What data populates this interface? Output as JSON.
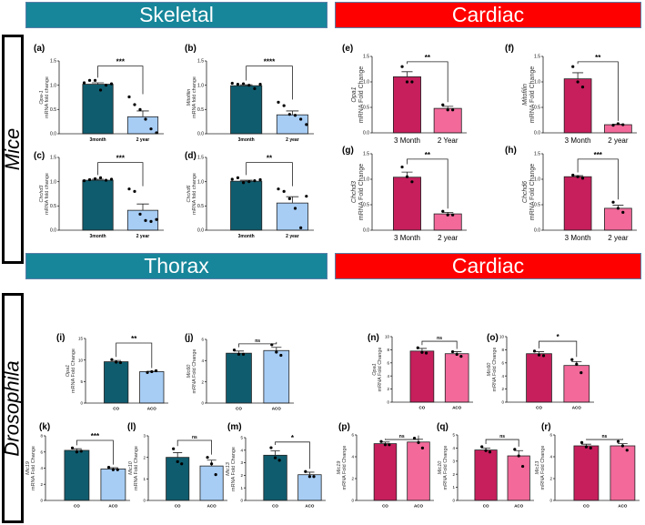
{
  "banners": {
    "skeletal": "Skeletal",
    "cardiac_top": "Cardiac",
    "thorax": "Thorax",
    "cardiac_bottom": "Cardiac"
  },
  "species": {
    "mice": "Mice",
    "drosophila": "Drosophila"
  },
  "colors": {
    "mice_skel_ctrl": "#0f5c6e",
    "mice_skel_aged": "#a7cdf5",
    "cardiac_ctrl": "#c61f5c",
    "cardiac_aged": "#f2699a",
    "thorax_ctrl": "#0f5c6e",
    "thorax_aged": "#a7cdf5"
  },
  "chart_data": [
    {
      "id": "a",
      "label": "(a)",
      "type": "bar",
      "gene": "Opa-1",
      "ylabel": "mRNA fold change",
      "categories": [
        "3month",
        "2 year"
      ],
      "yticks": [
        "0.0",
        "0.5",
        "1.0",
        "1.5"
      ],
      "ylim": [
        0,
        1.5
      ],
      "means": [
        1.02,
        0.35
      ],
      "sems": [
        0.03,
        0.12
      ],
      "points": [
        [
          1.05,
          1.1,
          1.1,
          0.9,
          1.0,
          1.03
        ],
        [
          0.76,
          0.6,
          0.5,
          0.3,
          0.1,
          0.02
        ]
      ],
      "sig": "***"
    },
    {
      "id": "b",
      "label": "(b)",
      "type": "bar",
      "gene": "Mitofilin",
      "ylabel": "mRNA fold change",
      "categories": [
        "3month",
        "2 year"
      ],
      "yticks": [
        "0.0",
        "0.5",
        "1.0",
        "1.5"
      ],
      "ylim": [
        0,
        1.5
      ],
      "means": [
        0.99,
        0.39
      ],
      "sems": [
        0.02,
        0.08
      ],
      "points": [
        [
          1.04,
          1.02,
          1.03,
          1.0,
          0.93,
          1.02
        ],
        [
          0.65,
          0.58,
          0.4,
          0.38,
          0.3,
          0.19
        ]
      ],
      "sig": "****"
    },
    {
      "id": "c",
      "label": "(c)",
      "type": "bar",
      "gene": "Chchd3",
      "ylabel": "mRNA fold change",
      "categories": [
        "3month",
        "2 year"
      ],
      "yticks": [
        "0.0",
        "0.5",
        "1.0",
        "1.5"
      ],
      "ylim": [
        0,
        1.5
      ],
      "means": [
        1.03,
        0.41
      ],
      "sems": [
        0.02,
        0.13
      ],
      "points": [
        [
          1.02,
          1.04,
          1.06,
          1.08,
          1.03,
          1.05
        ],
        [
          0.85,
          0.8,
          0.33,
          0.2,
          0.18,
          0.22
        ]
      ],
      "sig": "***"
    },
    {
      "id": "d",
      "label": "(d)",
      "type": "bar",
      "gene": "Chchd6",
      "ylabel": "mRNA fold change",
      "categories": [
        "3month",
        "2 year"
      ],
      "yticks": [
        "0.0",
        "0.5",
        "1.0",
        "1.5"
      ],
      "ylim": [
        0,
        1.5
      ],
      "means": [
        1.01,
        0.56
      ],
      "sems": [
        0.02,
        0.13
      ],
      "points": [
        [
          1.05,
          1.08,
          0.98,
          1.0,
          1.02,
          1.04
        ],
        [
          0.85,
          0.8,
          0.65,
          0.45,
          0.05,
          0.7
        ]
      ],
      "sig": "**"
    },
    {
      "id": "e",
      "label": "(e)",
      "type": "bar",
      "gene": "Opa1",
      "ylabel": "mRNA Fold Change",
      "categories": [
        "3 Month",
        "2 Year"
      ],
      "yticks": [
        "0.0",
        "0.5",
        "1.0",
        "1.5"
      ],
      "ylim": [
        0,
        1.5
      ],
      "means": [
        1.1,
        0.48
      ],
      "sems": [
        0.1,
        0.04
      ],
      "points": [
        [
          1.3,
          1.0,
          1.0
        ],
        [
          0.55,
          0.45,
          0.45
        ]
      ],
      "sig": "**"
    },
    {
      "id": "f",
      "label": "(f)",
      "type": "bar",
      "gene": "Mitofilin",
      "ylabel": "mRNA Fold Change",
      "categories": [
        "3 Month",
        "2 year"
      ],
      "yticks": [
        "0.0",
        "0.5",
        "1.0",
        "1.5"
      ],
      "ylim": [
        0,
        1.5
      ],
      "means": [
        1.06,
        0.16
      ],
      "sems": [
        0.12,
        0.01
      ],
      "points": [
        [
          1.3,
          1.0,
          0.9
        ],
        [
          0.15,
          0.18,
          0.16
        ]
      ],
      "sig": "**"
    },
    {
      "id": "g",
      "label": "(g)",
      "type": "bar",
      "gene": "Chchd3",
      "ylabel": "mRNA Fold Change",
      "categories": [
        "3 Month",
        "2 year"
      ],
      "yticks": [
        "0.0",
        "0.5",
        "1.0",
        "1.5"
      ],
      "ylim": [
        0,
        1.5
      ],
      "means": [
        1.04,
        0.32
      ],
      "sems": [
        0.1,
        0.03
      ],
      "points": [
        [
          1.24,
          1.05,
          0.95
        ],
        [
          0.37,
          0.3,
          0.3
        ]
      ],
      "sig": "**"
    },
    {
      "id": "h",
      "label": "(h)",
      "type": "bar",
      "gene": "Chchd6",
      "ylabel": "mRNA Fold Change",
      "categories": [
        "3 Month",
        "2 year"
      ],
      "yticks": [
        "0.0",
        "0.5",
        "1.0",
        "1.5"
      ],
      "ylim": [
        0,
        1.5
      ],
      "means": [
        1.05,
        0.43
      ],
      "sems": [
        0.02,
        0.06
      ],
      "points": [
        [
          1.08,
          1.05,
          1.02
        ],
        [
          0.55,
          0.43,
          0.35
        ]
      ],
      "sig": "***"
    },
    {
      "id": "i",
      "label": "(i)",
      "type": "bar",
      "gene": "Opa1",
      "ylabel": "mRNA Fold Change",
      "categories": [
        "CO",
        "ACO"
      ],
      "yticks": [
        "0",
        "5",
        "10",
        "15"
      ],
      "ylim": [
        0,
        15
      ],
      "means": [
        9.6,
        7.3
      ],
      "sems": [
        0.3,
        0.1
      ],
      "points": [
        [
          10.1,
          9.5,
          9.4
        ],
        [
          7.1,
          7.3,
          7.5
        ]
      ],
      "sig": "**"
    },
    {
      "id": "j",
      "label": "(j)",
      "type": "bar",
      "gene": "Mic60",
      "ylabel": "mRNA Fold Change",
      "categories": [
        "CO",
        "ACO"
      ],
      "yticks": [
        "0",
        "2",
        "4",
        "6"
      ],
      "ylim": [
        0,
        6
      ],
      "means": [
        4.7,
        4.95
      ],
      "sems": [
        0.2,
        0.3
      ],
      "points": [
        [
          5.0,
          4.6,
          4.6
        ],
        [
          5.5,
          4.8,
          4.5
        ]
      ],
      "sig": "ns"
    },
    {
      "id": "k",
      "label": "(k)",
      "type": "bar",
      "gene": "Mic19",
      "ylabel": "mRNA Fold Change",
      "categories": [
        "CO",
        "ACO"
      ],
      "yticks": [
        "0",
        "2",
        "4",
        "6",
        "8"
      ],
      "ylim": [
        0,
        8
      ],
      "means": [
        6.2,
        3.9
      ],
      "sems": [
        0.2,
        0.15
      ],
      "points": [
        [
          6.5,
          6.0,
          6.1
        ],
        [
          4.1,
          3.8,
          3.8
        ]
      ],
      "sig": "***"
    },
    {
      "id": "l",
      "label": "(l)",
      "type": "bar",
      "gene": "Mic10",
      "ylabel": "mRNA Fold Change",
      "categories": [
        "CO",
        "ACO"
      ],
      "yticks": [
        "0",
        "1",
        "2",
        "3"
      ],
      "ylim": [
        0,
        3
      ],
      "means": [
        2.0,
        1.6
      ],
      "sems": [
        0.22,
        0.27
      ],
      "points": [
        [
          2.4,
          1.8,
          1.7
        ],
        [
          2.0,
          1.7,
          1.2
        ]
      ],
      "sig": "ns"
    },
    {
      "id": "m",
      "label": "(m)",
      "type": "bar",
      "gene": "Mic13",
      "ylabel": "mRNA Fold Change",
      "categories": [
        "CO",
        "ACO"
      ],
      "yticks": [
        "0",
        "1",
        "2",
        "3",
        "4",
        "5"
      ],
      "ylim": [
        0,
        5
      ],
      "means": [
        3.6,
        2.05
      ],
      "sems": [
        0.35,
        0.2
      ],
      "points": [
        [
          4.2,
          3.4,
          3.2
        ],
        [
          2.3,
          1.9,
          1.9
        ]
      ],
      "sig": "*"
    },
    {
      "id": "n",
      "label": "(n)",
      "type": "bar",
      "gene": "Opa1",
      "ylabel": "mRNA Fold Change",
      "categories": [
        "CO",
        "ACO"
      ],
      "yticks": [
        "0",
        "2",
        "4",
        "6",
        "8",
        "10"
      ],
      "ylim": [
        0,
        10
      ],
      "means": [
        7.8,
        7.4
      ],
      "sems": [
        0.4,
        0.3
      ],
      "points": [
        [
          8.3,
          7.6,
          7.5
        ],
        [
          7.7,
          7.3,
          7.0
        ]
      ],
      "sig": "ns"
    },
    {
      "id": "o",
      "label": "(o)",
      "type": "bar",
      "gene": "Mic60",
      "ylabel": "mRNA Fold Change",
      "categories": [
        "CO",
        "ACO"
      ],
      "yticks": [
        "0",
        "2",
        "4",
        "6",
        "8",
        "10"
      ],
      "ylim": [
        0,
        10
      ],
      "means": [
        7.4,
        5.6
      ],
      "sems": [
        0.3,
        0.6
      ],
      "points": [
        [
          7.8,
          7.2,
          7.1
        ],
        [
          6.5,
          5.8,
          4.5
        ]
      ],
      "sig": "*"
    },
    {
      "id": "p",
      "label": "(p)",
      "type": "bar",
      "gene": "Mic19",
      "ylabel": "mRNA Fold Change",
      "categories": [
        "CO",
        "ACO"
      ],
      "yticks": [
        "0",
        "2",
        "4",
        "6"
      ],
      "ylim": [
        0,
        6
      ],
      "means": [
        5.2,
        5.35
      ],
      "sems": [
        0.15,
        0.25
      ],
      "points": [
        [
          5.4,
          5.1,
          5.1
        ],
        [
          5.7,
          5.3,
          4.8
        ]
      ],
      "sig": "ns"
    },
    {
      "id": "q",
      "label": "(q)",
      "type": "bar",
      "gene": "Mic10",
      "ylabel": "mRNA Fold Change",
      "categories": [
        "CO",
        "ACO"
      ],
      "yticks": [
        "0",
        "1",
        "2",
        "3",
        "4",
        "5"
      ],
      "ylim": [
        0,
        5
      ],
      "means": [
        3.85,
        3.4
      ],
      "sems": [
        0.15,
        0.4
      ],
      "points": [
        [
          4.1,
          3.8,
          3.7
        ],
        [
          3.9,
          3.4,
          2.6
        ]
      ],
      "sig": "ns"
    },
    {
      "id": "r",
      "label": "(r)",
      "type": "bar",
      "gene": "Mic13",
      "ylabel": "mRNA Fold Change",
      "categories": [
        "CO",
        "ACO"
      ],
      "yticks": [
        "0",
        "2",
        "4",
        "6"
      ],
      "ylim": [
        0,
        6
      ],
      "means": [
        5.0,
        5.0
      ],
      "sems": [
        0.15,
        0.2
      ],
      "points": [
        [
          5.3,
          4.9,
          4.8
        ],
        [
          5.4,
          5.0,
          4.6
        ]
      ],
      "sig": "ns"
    }
  ]
}
